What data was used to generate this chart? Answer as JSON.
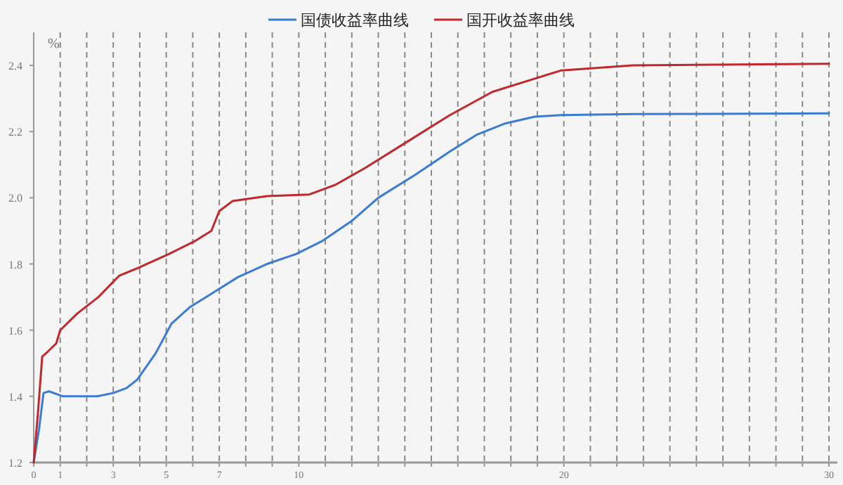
{
  "chart_data": {
    "type": "line",
    "ylabel": "%",
    "xlim": [
      0,
      30
    ],
    "ylim": [
      1.2,
      2.5
    ],
    "xticks": [
      0,
      1,
      {
        "value": 2,
        "label": null
      },
      3,
      {
        "value": 4,
        "label": null
      },
      5,
      {
        "value": 6,
        "label": null
      },
      7,
      {
        "value": 8,
        "label": null
      },
      {
        "value": 9,
        "label": null
      },
      10,
      {
        "value": 11,
        "label": null
      },
      {
        "value": 12,
        "label": null
      },
      {
        "value": 13,
        "label": null
      },
      {
        "value": 14,
        "label": null
      },
      {
        "value": 15,
        "label": null
      },
      {
        "value": 16,
        "label": null
      },
      {
        "value": 17,
        "label": null
      },
      {
        "value": 18,
        "label": null
      },
      {
        "value": 19,
        "label": null
      },
      20,
      {
        "value": 21,
        "label": null
      },
      {
        "value": 22,
        "label": null
      },
      {
        "value": 23,
        "label": null
      },
      {
        "value": 24,
        "label": null
      },
      {
        "value": 25,
        "label": null
      },
      {
        "value": 26,
        "label": null
      },
      {
        "value": 27,
        "label": null
      },
      {
        "value": 28,
        "label": null
      },
      {
        "value": 29,
        "label": null
      },
      30
    ],
    "yticks": [
      1.2,
      1.4,
      1.6,
      1.8,
      {
        "value": 2,
        "label": "2.0"
      },
      2.2,
      2.4
    ],
    "grid": "x",
    "legend": "top",
    "series": [
      {
        "name": "国债收益率曲线",
        "color": "#3b7bd1",
        "x": [
          0,
          0.2,
          0.37,
          0.58,
          1.1,
          1.6,
          2.4,
          3.0,
          3.5,
          3.9,
          4.6,
          5.2,
          5.9,
          6.7,
          7.7,
          8.8,
          9.9,
          10.9,
          12.0,
          13.0,
          14.4,
          15.7,
          16.7,
          17.8,
          18.9,
          19.9,
          22.6,
          30
        ],
        "values": [
          1.2,
          1.3,
          1.41,
          1.415,
          1.4,
          1.4,
          1.4,
          1.41,
          1.425,
          1.45,
          1.53,
          1.62,
          1.67,
          1.71,
          1.76,
          1.8,
          1.83,
          1.87,
          1.93,
          2.0,
          2.07,
          2.14,
          2.19,
          2.225,
          2.245,
          2.25,
          2.253,
          2.255
        ]
      },
      {
        "name": "国开收益率曲线",
        "color": "#c0282d",
        "x": [
          0,
          0.16,
          0.32,
          0.53,
          0.85,
          1.0,
          1.64,
          2.44,
          3.23,
          4.0,
          5.1,
          6.1,
          6.7,
          7.0,
          7.5,
          8.8,
          10.4,
          11.4,
          12.5,
          14.1,
          15.7,
          17.3,
          18.9,
          19.9,
          22.6,
          30
        ],
        "values": [
          1.2,
          1.35,
          1.52,
          1.535,
          1.56,
          1.6,
          1.65,
          1.7,
          1.765,
          1.79,
          1.83,
          1.87,
          1.9,
          1.96,
          1.99,
          2.005,
          2.01,
          2.04,
          2.09,
          2.17,
          2.25,
          2.32,
          2.36,
          2.385,
          2.4,
          2.405
        ]
      }
    ]
  }
}
